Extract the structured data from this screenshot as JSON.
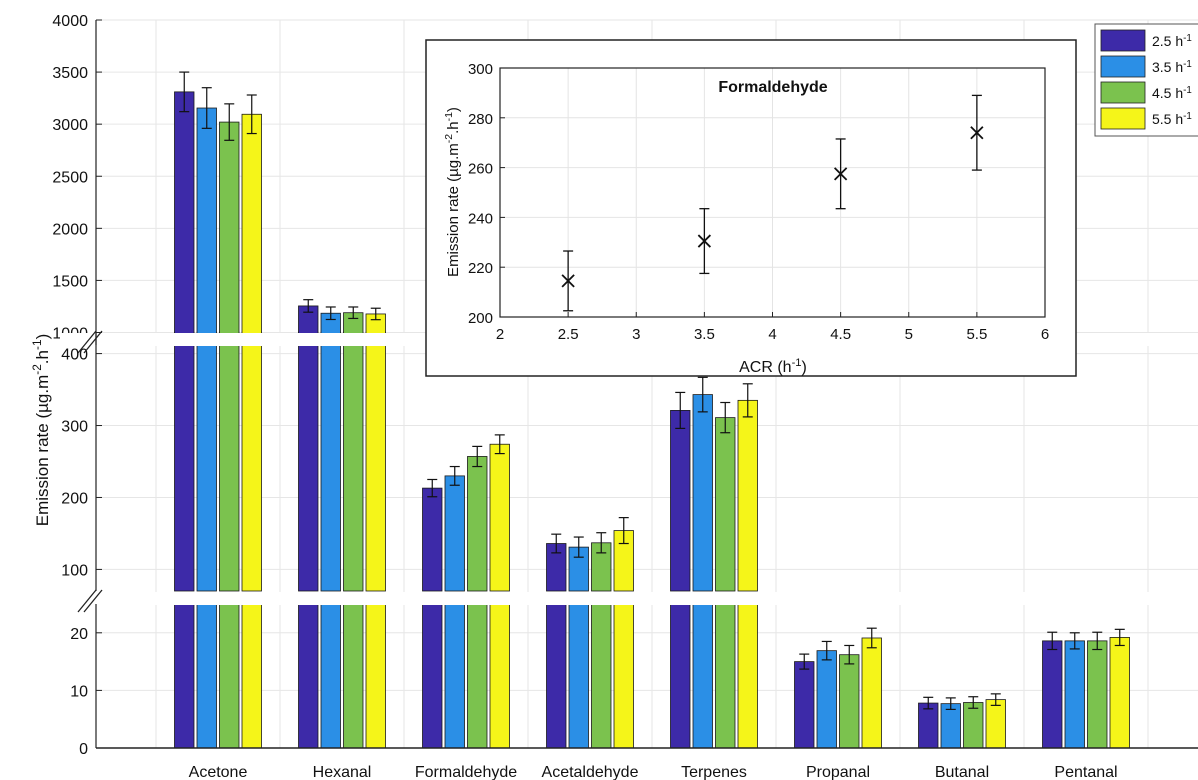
{
  "chart_data": [
    {
      "type": "bar",
      "ylabel": "Emission rate (µg.m⁻².h⁻¹)",
      "categories": [
        "Acetone",
        "Hexanal",
        "Formaldehyde",
        "Acetaldehyde",
        "Terpenes",
        "Propanal",
        "Butanal",
        "Pentanal"
      ],
      "series": [
        {
          "name": "2.5 h⁻¹",
          "color": "#3d2aa8",
          "values": [
            3310,
            1255,
            213,
            136,
            321,
            15.0,
            7.8,
            18.6
          ],
          "errors": [
            190,
            60,
            12,
            13,
            25,
            1.3,
            1.0,
            1.5
          ]
        },
        {
          "name": "3.5 h⁻¹",
          "color": "#2b8fe6",
          "values": [
            3155,
            1185,
            230,
            131,
            343,
            16.9,
            7.7,
            18.6
          ],
          "errors": [
            195,
            60,
            13,
            14,
            24,
            1.6,
            1.0,
            1.4
          ]
        },
        {
          "name": "4.5 h⁻¹",
          "color": "#7bc24e",
          "values": [
            3020,
            1190,
            257,
            137,
            311,
            16.2,
            7.9,
            18.6
          ],
          "errors": [
            175,
            55,
            14,
            14,
            21,
            1.6,
            1.0,
            1.5
          ]
        },
        {
          "name": "5.5 h⁻¹",
          "color": "#f5f519",
          "values": [
            3095,
            1178,
            274,
            154,
            335,
            19.1,
            8.4,
            19.2
          ],
          "errors": [
            185,
            55,
            13,
            18,
            23,
            1.7,
            1.0,
            1.4
          ]
        }
      ],
      "broken_axis": true,
      "axis_segments": [
        {
          "ylim": [
            0,
            25
          ],
          "ticks": [
            "0",
            "10",
            "20"
          ]
        },
        {
          "ylim": [
            70,
            430
          ],
          "ticks": [
            "100",
            "200",
            "300",
            "400"
          ]
        },
        {
          "ylim": [
            880,
            4000
          ],
          "ticks": [
            "1000",
            "1500",
            "2000",
            "2500",
            "3000",
            "3500",
            "4000"
          ]
        }
      ],
      "grid": true,
      "legend_position": "top-right"
    },
    {
      "type": "scatter",
      "title": "Formaldehyde",
      "xlabel": "ACR (h⁻¹)",
      "ylabel": "Emission rate (µg.m⁻².h⁻¹)",
      "x": [
        2.5,
        3.5,
        4.5,
        5.5
      ],
      "y": [
        214.5,
        230.5,
        257.5,
        274
      ],
      "errors": [
        12,
        13,
        14,
        15
      ],
      "xlim": [
        2,
        6
      ],
      "ylim": [
        200,
        300
      ],
      "xticks": [
        "2",
        "2.5",
        "3",
        "3.5",
        "4",
        "4.5",
        "5",
        "5.5",
        "6"
      ],
      "yticks": [
        "200",
        "220",
        "240",
        "260",
        "280",
        "300"
      ],
      "grid": true
    }
  ]
}
